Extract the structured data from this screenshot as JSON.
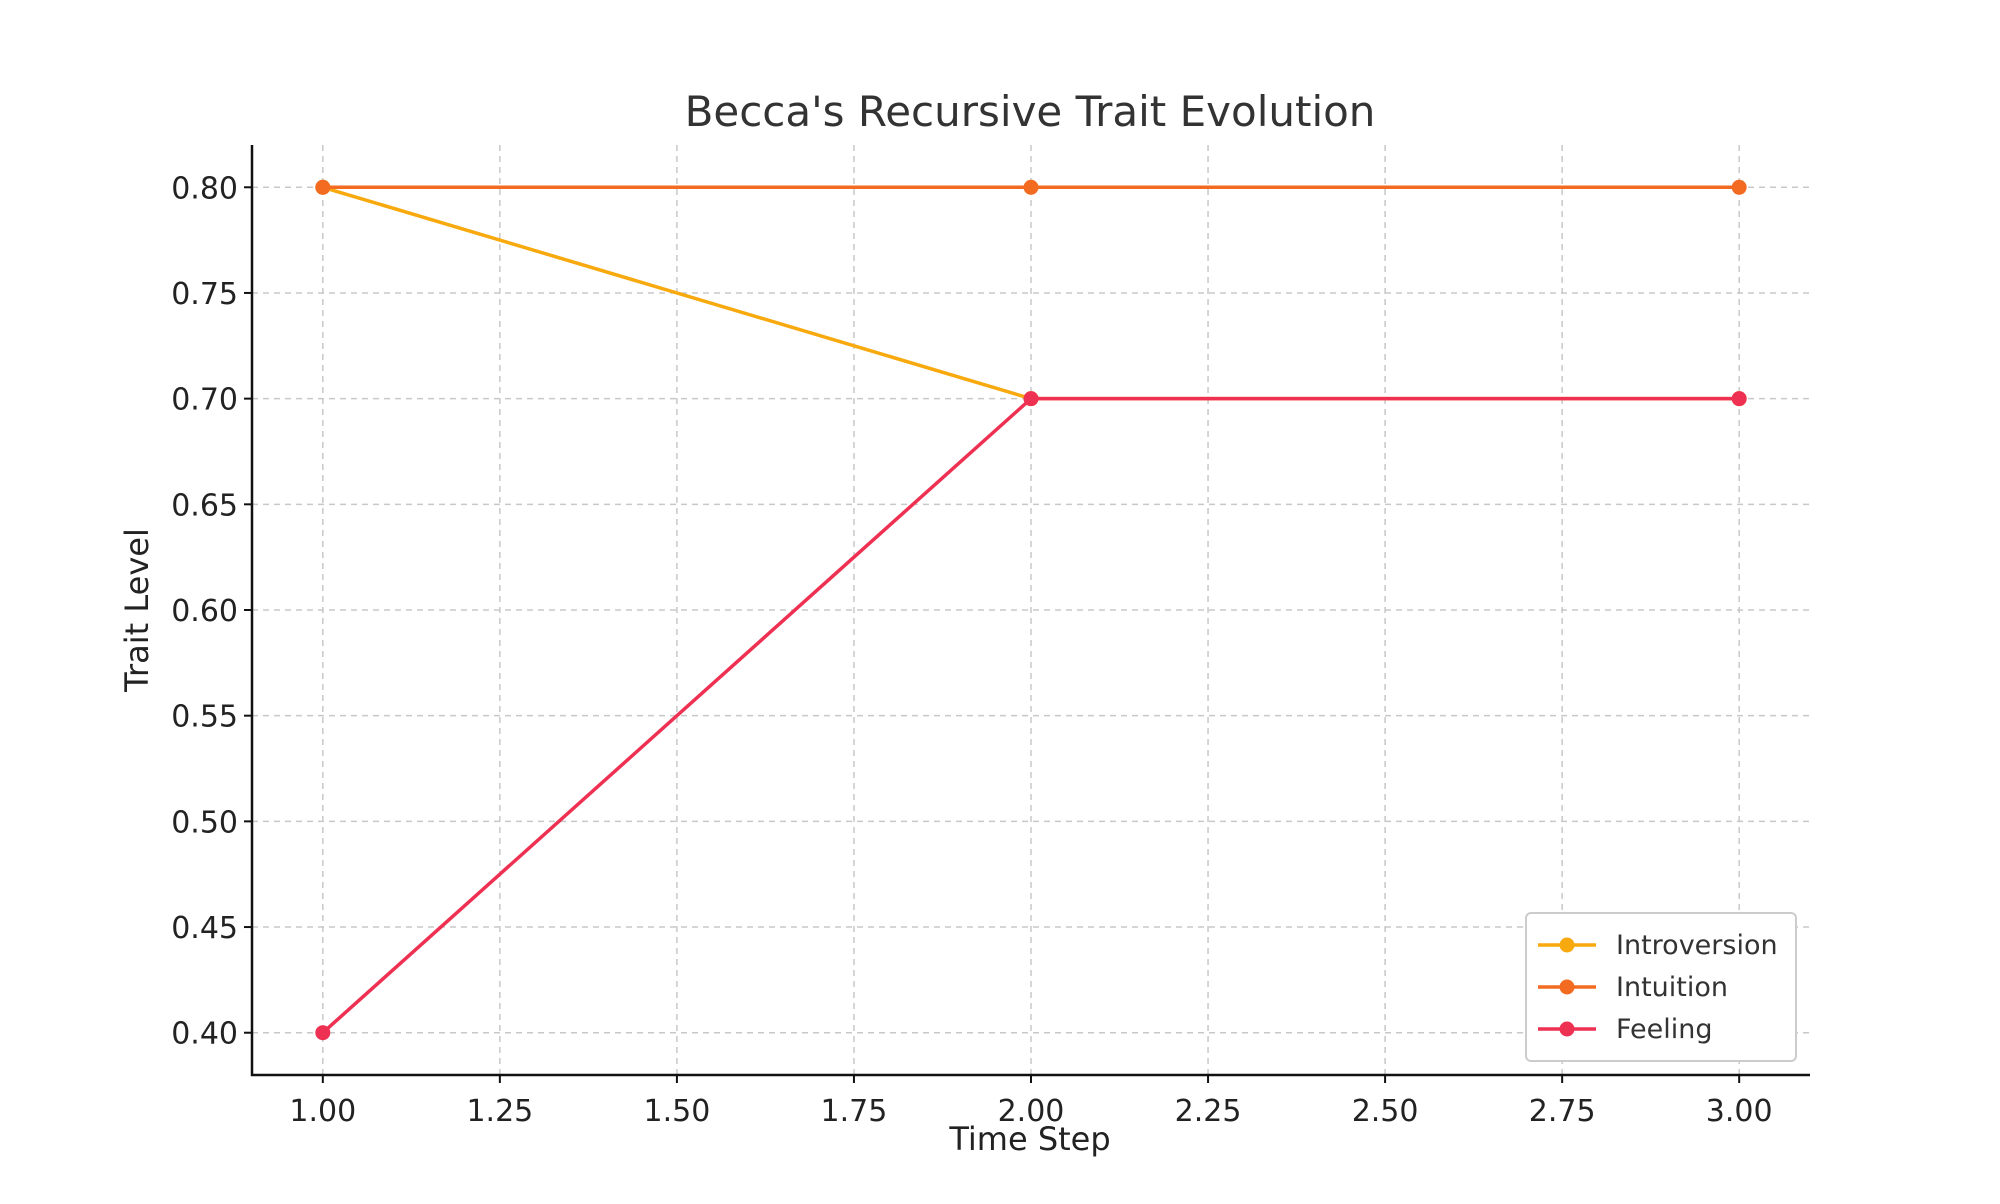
{
  "chart_data": {
    "type": "line",
    "title": "Becca's Recursive Trait Evolution",
    "xlabel": "Time Step",
    "ylabel": "Trait Level",
    "x": [
      1,
      2,
      3
    ],
    "xlim": [
      0.9,
      3.1
    ],
    "ylim": [
      0.38,
      0.82
    ],
    "xticks": [
      1.0,
      1.25,
      1.5,
      1.75,
      2.0,
      2.25,
      2.5,
      2.75,
      3.0
    ],
    "yticks": [
      0.4,
      0.45,
      0.5,
      0.55,
      0.6,
      0.65,
      0.7,
      0.75,
      0.8
    ],
    "xtick_labels": [
      "1.00",
      "1.25",
      "1.50",
      "1.75",
      "2.00",
      "2.25",
      "2.50",
      "2.75",
      "3.00"
    ],
    "ytick_labels": [
      "0.40",
      "0.45",
      "0.50",
      "0.55",
      "0.60",
      "0.65",
      "0.70",
      "0.75",
      "0.80"
    ],
    "grid": true,
    "legend_position": "bottom-right",
    "series": [
      {
        "name": "Introversion",
        "color": "#F7A90E",
        "values": [
          0.8,
          0.7,
          0.7
        ]
      },
      {
        "name": "Intuition",
        "color": "#F26B21",
        "values": [
          0.8,
          0.8,
          0.8
        ]
      },
      {
        "name": "Feeling",
        "color": "#EE3152",
        "values": [
          0.4,
          0.7,
          0.7
        ]
      }
    ]
  }
}
